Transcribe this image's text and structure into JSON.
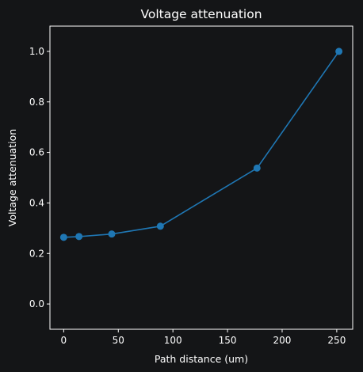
{
  "chart_data": {
    "type": "line",
    "title": "Voltage attenuation",
    "xlabel": "Path distance (um)",
    "ylabel": "Voltage attenuation",
    "xlim": [
      -12.6,
      264.6
    ],
    "ylim": [
      -0.1,
      1.1
    ],
    "xticks": [
      0,
      50,
      100,
      150,
      200,
      250
    ],
    "yticks": [
      0.0,
      0.2,
      0.4,
      0.6,
      0.8,
      1.0
    ],
    "xtick_labels": [
      "0",
      "50",
      "100",
      "150",
      "200",
      "250"
    ],
    "ytick_labels": [
      "0.0",
      "0.2",
      "0.4",
      "0.6",
      "0.8",
      "1.0"
    ],
    "grid": false,
    "series": [
      {
        "color": "#1f77b4",
        "marker": "circle",
        "x": [
          0,
          14,
          44,
          88.5,
          177,
          252
        ],
        "y": [
          0.264,
          0.267,
          0.277,
          0.308,
          0.538,
          1.0
        ]
      }
    ]
  },
  "colors": {
    "background": "#141517",
    "axes": "#ffffff",
    "text": "#ffffff",
    "line": "#1f77b4"
  }
}
